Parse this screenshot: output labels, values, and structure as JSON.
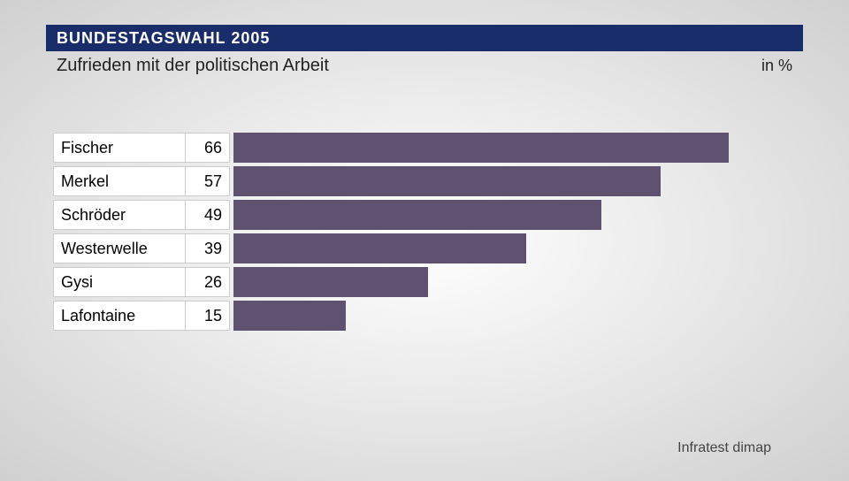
{
  "header": {
    "title": "BUNDESTAGSWAHL 2005",
    "subtitle": "Zufrieden mit der politischen Arbeit",
    "unit": "in %"
  },
  "chart": {
    "type": "bar",
    "bar_color": "#5e5270",
    "cell_bg": "#ffffff",
    "cell_border": "#cccccc",
    "max_value": 75,
    "bar_area_width": 638,
    "rows": [
      {
        "name": "Fischer",
        "value": 66
      },
      {
        "name": "Merkel",
        "value": 57
      },
      {
        "name": "Schröder",
        "value": 49
      },
      {
        "name": "Westerwelle",
        "value": 39
      },
      {
        "name": "Gysi",
        "value": 26
      },
      {
        "name": "Lafontaine",
        "value": 15
      }
    ]
  },
  "source": "Infratest dimap",
  "colors": {
    "header_bg": "#1a2d6b",
    "header_text": "#ffffff",
    "sub_text": "#222222",
    "source_text": "#444444"
  }
}
